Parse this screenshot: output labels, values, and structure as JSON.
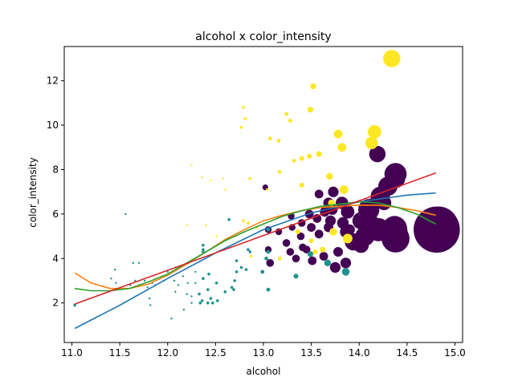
{
  "chart_data": {
    "type": "scatter",
    "title": "alcohol x color_intensity",
    "xlabel": "alcohol",
    "ylabel": "color_intensity",
    "xlim": [
      10.92,
      15.08
    ],
    "ylim": [
      0.22,
      13.54
    ],
    "xticks": [
      "11.0",
      "11.5",
      "12.0",
      "12.5",
      "13.0",
      "13.5",
      "14.0",
      "14.5",
      "15.0"
    ],
    "yticks": [
      "2",
      "4",
      "6",
      "8",
      "10",
      "12"
    ],
    "grid": false,
    "legend": "none",
    "colors": {
      "class_0": "#440154",
      "class_1": "#21918c",
      "class_2": "#fde725",
      "fit_1": "#1f77b4",
      "fit_2": "#ff7f0e",
      "fit_3": "#2ca02c",
      "fit_4": "#d62728"
    },
    "series": [
      {
        "class": "class_0",
        "points": [
          [
            14.81,
            5.3,
            4.8
          ],
          [
            14.83,
            5.45,
            4.1
          ],
          [
            14.38,
            4.9,
            2.9
          ],
          [
            14.37,
            5.35,
            2.6
          ],
          [
            14.2,
            5.3,
            2.4
          ],
          [
            14.1,
            5.6,
            2.1
          ],
          [
            14.1,
            6.2,
            2.2
          ],
          [
            14.22,
            6.8,
            2.0
          ],
          [
            14.39,
            5.2,
            2.3
          ],
          [
            14.06,
            5.0,
            2.0
          ],
          [
            13.94,
            4.75,
            1.8
          ],
          [
            14.02,
            5.7,
            1.8
          ],
          [
            14.19,
            8.7,
            1.7
          ],
          [
            14.38,
            7.8,
            2.3
          ],
          [
            14.38,
            7.6,
            2.0
          ],
          [
            14.3,
            7.25,
            2.0
          ],
          [
            13.88,
            6.1,
            1.4
          ],
          [
            13.86,
            5.2,
            1.2
          ],
          [
            13.82,
            6.5,
            1.3
          ],
          [
            13.83,
            5.6,
            1.2
          ],
          [
            13.9,
            5.3,
            1.1
          ],
          [
            13.73,
            7.0,
            1.1
          ],
          [
            13.7,
            5.7,
            1.1
          ],
          [
            13.68,
            6.5,
            1.1
          ],
          [
            13.68,
            5.4,
            1.0
          ],
          [
            13.64,
            6.1,
            1.0
          ],
          [
            13.58,
            6.9,
            0.9
          ],
          [
            13.56,
            5.8,
            0.9
          ],
          [
            13.48,
            6.0,
            0.9
          ],
          [
            13.5,
            5.4,
            0.9
          ],
          [
            13.4,
            5.6,
            0.8
          ],
          [
            13.39,
            5.0,
            0.8
          ],
          [
            13.3,
            5.4,
            0.7
          ],
          [
            13.29,
            5.9,
            0.7
          ],
          [
            13.24,
            4.7,
            0.8
          ],
          [
            13.16,
            5.2,
            0.7
          ],
          [
            13.05,
            5.3,
            0.7
          ],
          [
            13.05,
            4.4,
            0.7
          ],
          [
            13.02,
            7.2,
            0.6
          ],
          [
            13.07,
            3.8,
            0.8
          ],
          [
            13.28,
            4.3,
            0.8
          ],
          [
            13.41,
            4.5,
            0.8
          ],
          [
            13.45,
            4.4,
            0.8
          ],
          [
            13.51,
            3.9,
            0.9
          ],
          [
            13.63,
            4.1,
            0.9
          ],
          [
            13.78,
            4.3,
            1.0
          ],
          [
            13.86,
            3.8,
            1.1
          ],
          [
            13.75,
            3.6,
            1.1
          ],
          [
            13.58,
            5.1,
            0.9
          ],
          [
            13.72,
            6.2,
            1.1
          ],
          [
            13.34,
            4.0,
            0.8
          ],
          [
            14.06,
            6.0,
            1.3
          ],
          [
            14.12,
            5.1,
            1.3
          ],
          [
            14.13,
            6.4,
            1.4
          ],
          [
            14.26,
            6.5,
            1.5
          ],
          [
            14.21,
            5.5,
            1.4
          ],
          [
            14.02,
            4.6,
            1.6
          ]
        ]
      },
      {
        "class": "class_1",
        "points": [
          [
            11.03,
            1.9,
            0.3
          ],
          [
            11.41,
            3.1,
            0.2
          ],
          [
            11.45,
            3.5,
            0.2
          ],
          [
            11.46,
            2.9,
            0.2
          ],
          [
            11.56,
            6.0,
            0.2
          ],
          [
            11.61,
            2.8,
            0.2
          ],
          [
            11.64,
            3.8,
            0.2
          ],
          [
            11.66,
            3.0,
            0.2
          ],
          [
            11.7,
            3.8,
            0.2
          ],
          [
            11.76,
            3.0,
            0.2
          ],
          [
            11.79,
            2.7,
            0.2
          ],
          [
            11.81,
            2.2,
            0.2
          ],
          [
            11.82,
            1.9,
            0.2
          ],
          [
            11.84,
            2.9,
            0.2
          ],
          [
            11.87,
            2.8,
            0.2
          ],
          [
            11.96,
            3.0,
            0.2
          ],
          [
            12.0,
            3.4,
            0.2
          ],
          [
            12.04,
            1.3,
            0.2
          ],
          [
            12.07,
            3.0,
            0.2
          ],
          [
            12.08,
            2.5,
            0.2
          ],
          [
            12.08,
            3.6,
            0.2
          ],
          [
            12.11,
            2.8,
            0.2
          ],
          [
            12.16,
            3.2,
            0.2
          ],
          [
            12.17,
            1.7,
            0.2
          ],
          [
            12.2,
            2.4,
            0.2
          ],
          [
            12.21,
            2.9,
            0.2
          ],
          [
            12.22,
            3.8,
            0.2
          ],
          [
            12.25,
            2.3,
            0.2
          ],
          [
            12.25,
            2.0,
            0.2
          ],
          [
            12.29,
            2.9,
            0.2
          ],
          [
            12.29,
            3.4,
            0.2
          ],
          [
            12.33,
            2.4,
            0.3
          ],
          [
            12.34,
            2.0,
            0.3
          ],
          [
            12.36,
            2.1,
            0.3
          ],
          [
            12.37,
            4.6,
            0.3
          ],
          [
            12.37,
            4.4,
            0.3
          ],
          [
            12.37,
            4.3,
            0.3
          ],
          [
            12.37,
            3.1,
            0.3
          ],
          [
            12.42,
            2.0,
            0.3
          ],
          [
            12.42,
            2.6,
            0.3
          ],
          [
            12.43,
            3.3,
            0.3
          ],
          [
            12.45,
            2.2,
            0.3
          ],
          [
            12.47,
            2.0,
            0.3
          ],
          [
            12.51,
            2.9,
            0.3
          ],
          [
            12.52,
            2.1,
            0.3
          ],
          [
            12.6,
            2.5,
            0.3
          ],
          [
            12.64,
            5.75,
            0.3
          ],
          [
            12.67,
            2.7,
            0.3
          ],
          [
            12.69,
            2.6,
            0.3
          ],
          [
            12.7,
            3.0,
            0.3
          ],
          [
            12.72,
            3.9,
            0.3
          ],
          [
            12.72,
            3.4,
            0.3
          ],
          [
            12.77,
            3.6,
            0.3
          ],
          [
            12.82,
            3.5,
            0.3
          ],
          [
            12.84,
            4.4,
            0.3
          ],
          [
            12.86,
            4.3,
            0.3
          ],
          [
            12.99,
            3.4,
            0.4
          ],
          [
            13.03,
            4.0,
            0.4
          ],
          [
            13.05,
            2.6,
            0.4
          ],
          [
            13.05,
            4.3,
            0.4
          ],
          [
            13.05,
            5.3,
            0.4
          ],
          [
            13.34,
            3.2,
            0.5
          ],
          [
            13.49,
            4.2,
            0.6
          ],
          [
            13.67,
            3.8,
            0.7
          ],
          [
            13.86,
            3.4,
            0.8
          ]
        ]
      },
      {
        "class": "class_2",
        "points": [
          [
            12.2,
            5.5,
            0.2
          ],
          [
            12.25,
            8.2,
            0.2
          ],
          [
            12.36,
            7.65,
            0.2
          ],
          [
            12.4,
            5.5,
            0.2
          ],
          [
            12.45,
            7.5,
            0.2
          ],
          [
            12.51,
            5.0,
            0.2
          ],
          [
            12.58,
            7.6,
            0.2
          ],
          [
            12.6,
            7.1,
            0.2
          ],
          [
            12.71,
            5.0,
            0.2
          ],
          [
            12.77,
            9.9,
            0.3
          ],
          [
            12.79,
            10.8,
            0.3
          ],
          [
            12.81,
            10.3,
            0.3
          ],
          [
            12.79,
            5.7,
            0.3
          ],
          [
            12.84,
            5.6,
            0.3
          ],
          [
            12.86,
            7.6,
            0.3
          ],
          [
            12.87,
            4.1,
            0.3
          ],
          [
            12.93,
            5.4,
            0.3
          ],
          [
            13.04,
            7.1,
            0.3
          ],
          [
            13.07,
            9.4,
            0.4
          ],
          [
            13.16,
            9.3,
            0.4
          ],
          [
            13.17,
            7.9,
            0.4
          ],
          [
            13.17,
            4.0,
            0.4
          ],
          [
            13.24,
            10.5,
            0.4
          ],
          [
            13.28,
            10.2,
            0.4
          ],
          [
            13.32,
            8.4,
            0.4
          ],
          [
            13.36,
            5.2,
            0.5
          ],
          [
            13.4,
            8.5,
            0.5
          ],
          [
            13.4,
            7.3,
            0.5
          ],
          [
            13.48,
            8.6,
            0.5
          ],
          [
            13.49,
            10.7,
            0.6
          ],
          [
            13.52,
            11.75,
            0.6
          ],
          [
            13.5,
            4.8,
            0.5
          ],
          [
            13.54,
            4.3,
            0.5
          ],
          [
            13.58,
            8.7,
            0.6
          ],
          [
            13.62,
            4.4,
            0.6
          ],
          [
            13.69,
            7.7,
            0.7
          ],
          [
            13.71,
            6.5,
            0.7
          ],
          [
            13.73,
            5.2,
            0.8
          ],
          [
            13.78,
            9.6,
            0.9
          ],
          [
            13.82,
            9.0,
            0.9
          ],
          [
            13.84,
            7.1,
            0.9
          ],
          [
            13.88,
            4.9,
            1.0
          ],
          [
            14.13,
            9.2,
            1.3
          ],
          [
            14.16,
            9.7,
            1.4
          ],
          [
            14.34,
            13.0,
            1.8
          ]
        ]
      }
    ],
    "fits": [
      {
        "color": "fit_1",
        "x": [
          11.03,
          11.5,
          12.0,
          12.5,
          13.0,
          13.5,
          14.0,
          14.5,
          14.8
        ],
        "y": [
          0.85,
          1.9,
          3.1,
          4.25,
          5.3,
          6.05,
          6.55,
          6.85,
          6.95
        ]
      },
      {
        "color": "fit_2",
        "x": [
          11.03,
          11.2,
          11.4,
          11.6,
          11.8,
          12.0,
          12.2,
          12.4,
          12.6,
          12.8,
          13.0,
          13.2,
          13.4,
          13.6,
          13.8,
          14.0,
          14.2,
          14.4,
          14.6,
          14.8
        ],
        "y": [
          3.35,
          2.9,
          2.65,
          2.65,
          2.85,
          3.25,
          3.75,
          4.3,
          4.85,
          5.3,
          5.7,
          5.95,
          6.15,
          6.3,
          6.35,
          6.4,
          6.4,
          6.3,
          6.15,
          5.95
        ]
      },
      {
        "color": "fit_3",
        "x": [
          11.03,
          11.2,
          11.4,
          11.6,
          11.8,
          12.0,
          12.2,
          12.4,
          12.6,
          12.8,
          13.0,
          13.2,
          13.4,
          13.6,
          13.8,
          14.0,
          14.2,
          14.4,
          14.6,
          14.8
        ],
        "y": [
          2.65,
          2.55,
          2.55,
          2.65,
          2.95,
          3.3,
          3.8,
          4.3,
          4.8,
          5.2,
          5.55,
          5.9,
          6.15,
          6.35,
          6.45,
          6.55,
          6.5,
          6.3,
          6.0,
          5.55
        ]
      },
      {
        "color": "fit_4",
        "x": [
          11.03,
          14.8
        ],
        "y": [
          1.95,
          7.85
        ]
      }
    ]
  }
}
